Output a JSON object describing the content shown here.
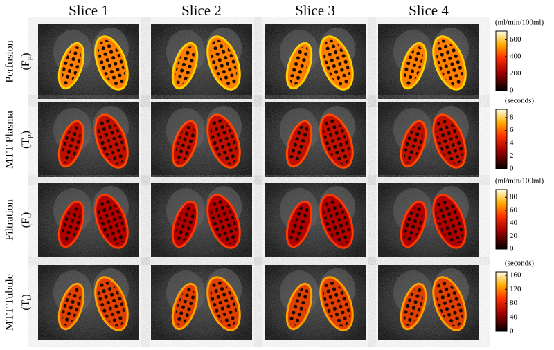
{
  "columns": [
    "Slice 1",
    "Slice 2",
    "Slice 3",
    "Slice 4"
  ],
  "rows": [
    {
      "label": "Perfusion",
      "symbol": {
        "base": "(F",
        "sub": "p",
        "end": ")"
      },
      "colorbar": {
        "unit": "(ml/min/100ml)",
        "range": [
          0,
          700
        ],
        "ticks": [
          0,
          200,
          400,
          600
        ]
      }
    },
    {
      "label": "MTT Plasma",
      "symbol": {
        "base": "(T",
        "sub": "p",
        "end": ")"
      },
      "colorbar": {
        "unit": "(seconds)",
        "range": [
          0,
          9.3
        ],
        "ticks": [
          0,
          2,
          4,
          6,
          8
        ]
      }
    },
    {
      "label": "Filtration",
      "symbol": {
        "base": "(F",
        "sub": "t",
        "end": ")"
      },
      "colorbar": {
        "unit": "(ml/min/100ml)",
        "range": [
          0,
          92
        ],
        "ticks": [
          0,
          20,
          40,
          60,
          80
        ]
      }
    },
    {
      "label": "MTT Tubule",
      "symbol": {
        "base": "(T",
        "sub": "t",
        "end": ")"
      },
      "colorbar": {
        "unit": "(seconds)",
        "range": [
          0,
          170
        ],
        "ticks": [
          0,
          40,
          80,
          120,
          160
        ]
      }
    }
  ]
}
